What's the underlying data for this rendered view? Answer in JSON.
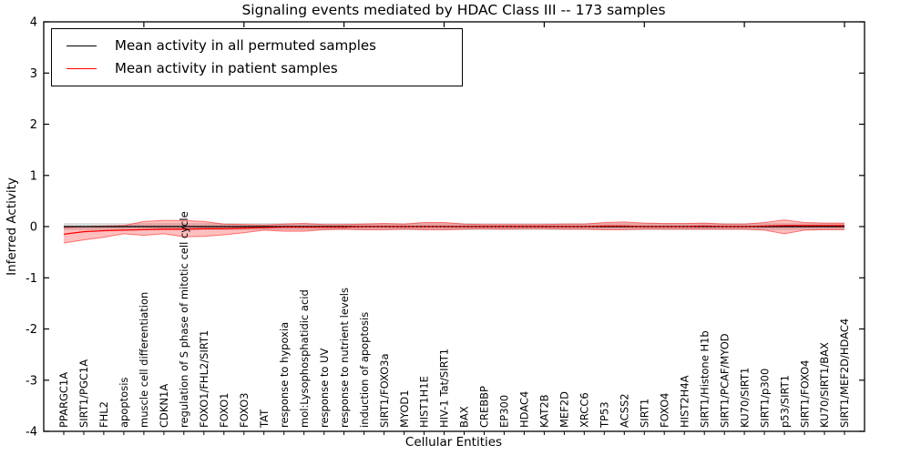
{
  "title": "Signaling events mediated by HDAC Class III -- 173 samples",
  "axes": {
    "xlabel": "Cellular Entities",
    "ylabel": "Inferred Activity",
    "y_ticks": [
      4,
      3,
      2,
      1,
      0,
      -1,
      -2,
      -3,
      -4
    ],
    "x_major_tick_step": 5
  },
  "legend": {
    "items": [
      {
        "label": "Mean activity in all permuted samples",
        "color": "#000000"
      },
      {
        "label": "Mean activity in patient samples",
        "color": "#ff0000"
      }
    ]
  },
  "chart_data": {
    "type": "line",
    "title": "Signaling events mediated by HDAC Class III -- 173 samples",
    "xlabel": "Cellular Entities",
    "ylabel": "Inferred Activity",
    "ylim": [
      -4,
      4
    ],
    "grid": false,
    "legend_position": "upper left",
    "categories": [
      "PPARGC1A",
      "SIRT1/PGC1A",
      "FHL2",
      "apoptosis",
      "muscle cell differentiation",
      "CDKN1A",
      "regulation of S phase of mitotic cell cycle",
      "FOXO1/FHL2/SIRT1",
      "FOXO1",
      "FOXO3",
      "TAT",
      "response to hypoxia",
      "mol:Lysophosphatidic acid",
      "response to UV",
      "response to nutrient levels",
      "induction of apoptosis",
      "SIRT1/FOXO3a",
      "MYOD1",
      "HIST1H1E",
      "HIV-1 Tat/SIRT1",
      "BAX",
      "CREBBP",
      "EP300",
      "HDAC4",
      "KAT2B",
      "MEF2D",
      "XRCC6",
      "TP53",
      "ACSS2",
      "SIRT1",
      "FOXO4",
      "HIST2H4A",
      "SIRT1/Histone H1b",
      "SIRT1/PCAF/MYOD",
      "KU70/SIRT1",
      "SIRT1/p300",
      "p53/SIRT1",
      "SIRT1/FOXO4",
      "KU70/SIRT1/BAX",
      "SIRT1/MEF2D/HDAC4"
    ],
    "series": [
      {
        "name": "Mean activity in all permuted samples",
        "color": "#000000",
        "style": "solid",
        "values": 0.0
      },
      {
        "name": "Mean activity in patient samples",
        "color": "#ff0000",
        "style": "solid",
        "values": [
          -0.15,
          -0.1,
          -0.08,
          -0.07,
          -0.06,
          -0.05,
          -0.05,
          -0.04,
          -0.04,
          -0.03,
          -0.02,
          -0.01,
          -0.01,
          -0.01,
          -0.01,
          0.0,
          0.0,
          0.0,
          0.0,
          0.0,
          0.0,
          0.0,
          0.0,
          0.0,
          0.0,
          0.0,
          0.0,
          0.01,
          0.01,
          0.0,
          0.0,
          0.0,
          0.01,
          0.0,
          0.0,
          0.01,
          0.02,
          0.02,
          0.02,
          0.02
        ]
      },
      {
        "name": "zero reference (dotted)",
        "color": "#000000",
        "style": "dotted",
        "values": 0.0
      }
    ],
    "bands": [
      {
        "name": "permuted-samples-spread",
        "color": "#999999",
        "opacity": 0.35,
        "edge": false,
        "upper": 0.07,
        "lower": -0.07
      },
      {
        "name": "patient-samples-spread",
        "color": "#ff0000",
        "opacity": 0.25,
        "edge": true,
        "upper": [
          -0.02,
          0.0,
          0.01,
          0.02,
          0.1,
          0.12,
          0.12,
          0.1,
          0.05,
          0.04,
          0.03,
          0.05,
          0.06,
          0.04,
          0.04,
          0.05,
          0.06,
          0.05,
          0.08,
          0.08,
          0.05,
          0.04,
          0.04,
          0.04,
          0.04,
          0.05,
          0.05,
          0.08,
          0.09,
          0.07,
          0.06,
          0.06,
          0.07,
          0.05,
          0.05,
          0.08,
          0.13,
          0.08,
          0.07,
          0.07
        ],
        "lower": [
          -0.32,
          -0.26,
          -0.21,
          -0.14,
          -0.17,
          -0.14,
          -0.2,
          -0.19,
          -0.16,
          -0.12,
          -0.07,
          -0.09,
          -0.09,
          -0.06,
          -0.05,
          -0.06,
          -0.06,
          -0.05,
          -0.06,
          -0.06,
          -0.05,
          -0.04,
          -0.05,
          -0.04,
          -0.04,
          -0.05,
          -0.05,
          -0.06,
          -0.06,
          -0.05,
          -0.05,
          -0.05,
          -0.05,
          -0.05,
          -0.05,
          -0.07,
          -0.14,
          -0.07,
          -0.06,
          -0.06
        ]
      }
    ]
  }
}
